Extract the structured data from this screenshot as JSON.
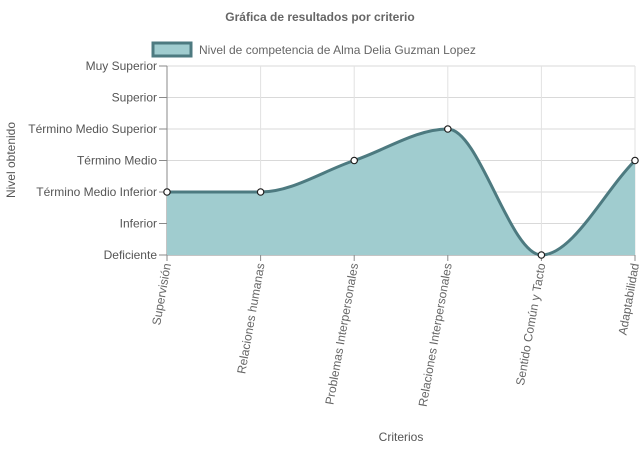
{
  "chart_data": {
    "type": "area",
    "title": "Gráfica de resultados por criterio",
    "xlabel": "Criterios",
    "ylabel": "Nivel obtenido",
    "categories": [
      "Supervisión",
      "Relaciones humanas",
      "Problemas Interpersonales",
      "Relaciones Interpersonales",
      "Sentido Común y Tacto",
      "Adaptabilidad"
    ],
    "y_levels": [
      "Deficiente",
      "Inferior",
      "Término Medio Inferior",
      "Término Medio",
      "Término Medio Superior",
      "Superior",
      "Muy Superior"
    ],
    "ylim": [
      0,
      6
    ],
    "series": [
      {
        "name": "Nivel de competencia de Alma Delia Guzman Lopez",
        "values": [
          2,
          2,
          3,
          4,
          0,
          3
        ],
        "line_color": "#4d7a80",
        "fill_color": "#a0cccf"
      }
    ],
    "legend_position": "top",
    "grid": true
  }
}
